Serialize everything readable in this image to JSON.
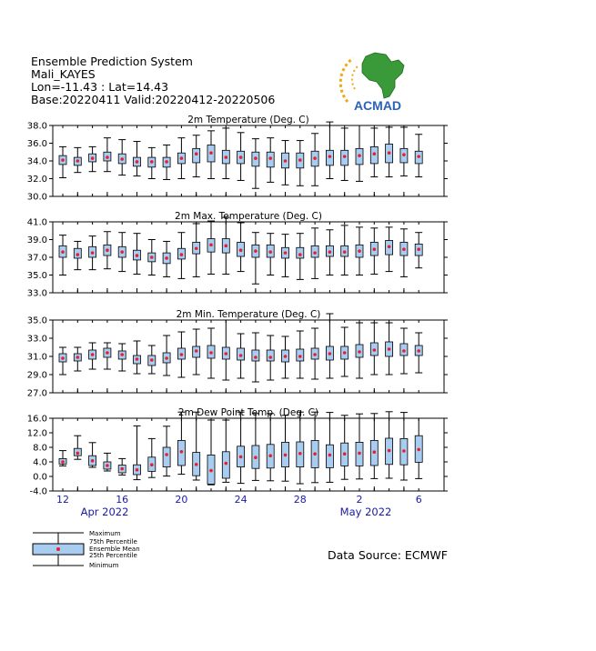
{
  "header": {
    "line1": "Ensemble Prediction System",
    "line2": "Mali_KAYES",
    "line3": "Lon=-11.43 : Lat=14.43",
    "line4": "Base:20220411 Valid:20220412-20220506"
  },
  "logo": {
    "text": "ACMAD",
    "icon": "africa-map-sun-logo"
  },
  "source": "Data Source: ECMWF",
  "legend": {
    "maximum": "Maximum",
    "p75": "75th Percentile",
    "mean": "Ensemble Mean",
    "p25": "25th Percentile",
    "minimum": "Minimum"
  },
  "colors": {
    "box": "#a9cdf0",
    "mean": "#e8202c",
    "axis_date": "#1a1aa8",
    "text": "#000000"
  },
  "chart_data": [
    {
      "type": "box",
      "title": "2m Temperature (Deg. C)",
      "ylim": [
        30,
        38
      ],
      "yticks": [
        "38.0",
        "36.0",
        "34.0",
        "32.0",
        "30.0"
      ],
      "x": [
        "12",
        "13",
        "14",
        "15",
        "16",
        "17",
        "18",
        "19",
        "20",
        "21",
        "22",
        "23",
        "24",
        "25",
        "26",
        "27",
        "28",
        "29",
        "30",
        "1",
        "2",
        "3",
        "4",
        "5",
        "6"
      ],
      "min": [
        32.1,
        32.7,
        32.8,
        32.8,
        32.4,
        32.3,
        32.0,
        31.9,
        32.0,
        32.2,
        32.0,
        32.0,
        31.8,
        30.9,
        31.6,
        31.3,
        31.2,
        31.2,
        32.0,
        31.8,
        31.7,
        32.2,
        32.2,
        32.3,
        32.2
      ],
      "p25": [
        33.6,
        33.5,
        33.9,
        34.0,
        33.7,
        33.4,
        33.3,
        33.3,
        33.7,
        33.8,
        33.9,
        33.7,
        33.7,
        33.4,
        33.3,
        33.2,
        33.2,
        33.4,
        33.5,
        33.5,
        33.6,
        33.7,
        33.8,
        33.8,
        33.7
      ],
      "mean": [
        34.1,
        34.0,
        34.3,
        34.4,
        34.2,
        33.9,
        33.9,
        33.9,
        34.3,
        34.8,
        34.9,
        34.4,
        34.4,
        34.3,
        34.3,
        34.0,
        34.1,
        34.3,
        34.5,
        34.5,
        34.6,
        34.8,
        34.9,
        34.7,
        34.5
      ],
      "p75": [
        34.6,
        34.4,
        34.8,
        35.0,
        34.8,
        34.4,
        34.4,
        34.4,
        34.9,
        35.4,
        35.8,
        35.2,
        35.1,
        35.0,
        35.0,
        34.9,
        34.9,
        35.1,
        35.2,
        35.2,
        35.4,
        35.6,
        35.9,
        35.4,
        35.1
      ],
      "max": [
        35.6,
        35.5,
        35.6,
        36.6,
        36.4,
        36.2,
        35.5,
        35.8,
        36.6,
        36.9,
        37.4,
        37.7,
        37.2,
        36.5,
        36.6,
        36.3,
        36.3,
        37.1,
        38.4,
        37.7,
        38.0,
        37.7,
        37.8,
        37.8,
        37.0
      ]
    },
    {
      "type": "box",
      "title": "2m Max. Temperature (Deg. C)",
      "ylim": [
        33,
        41
      ],
      "yticks": [
        "41.0",
        "39.0",
        "37.0",
        "35.0",
        "33.0"
      ],
      "x": [
        "12",
        "13",
        "14",
        "15",
        "16",
        "17",
        "18",
        "19",
        "20",
        "21",
        "22",
        "23",
        "24",
        "25",
        "26",
        "27",
        "28",
        "29",
        "30",
        "1",
        "2",
        "3",
        "4",
        "5",
        "6"
      ],
      "min": [
        35.0,
        35.6,
        35.6,
        35.7,
        35.4,
        35.1,
        35.0,
        34.8,
        34.6,
        34.8,
        35.1,
        35.1,
        35.4,
        34.0,
        35.0,
        34.8,
        34.5,
        34.6,
        35.0,
        35.0,
        35.0,
        35.1,
        35.4,
        34.8,
        35.8
      ],
      "p25": [
        37.0,
        36.9,
        37.0,
        37.2,
        37.0,
        36.7,
        36.5,
        36.3,
        36.8,
        37.4,
        37.6,
        37.5,
        37.1,
        37.0,
        37.0,
        36.9,
        36.9,
        37.0,
        37.1,
        37.1,
        37.0,
        37.2,
        37.3,
        37.2,
        37.2
      ],
      "mean": [
        37.6,
        37.3,
        37.5,
        37.8,
        37.6,
        37.2,
        37.0,
        36.9,
        37.3,
        38.0,
        38.4,
        38.3,
        37.8,
        37.7,
        37.6,
        37.5,
        37.3,
        37.5,
        37.6,
        37.6,
        37.7,
        37.9,
        38.2,
        37.9,
        37.9
      ],
      "p75": [
        38.3,
        38.0,
        38.2,
        38.4,
        38.2,
        37.8,
        37.5,
        37.5,
        38.0,
        38.7,
        39.1,
        39.1,
        38.7,
        38.4,
        38.4,
        38.1,
        38.1,
        38.3,
        38.3,
        38.3,
        38.4,
        38.7,
        38.9,
        38.7,
        38.5
      ],
      "max": [
        39.5,
        38.8,
        39.4,
        39.9,
        39.8,
        39.7,
        39.0,
        38.8,
        39.8,
        40.8,
        41.1,
        41.5,
        40.9,
        39.8,
        39.7,
        39.6,
        39.7,
        40.3,
        40.1,
        40.6,
        40.4,
        40.3,
        40.4,
        40.2,
        39.8
      ]
    },
    {
      "type": "box",
      "title": "2m Min. Temperature (Deg. C)",
      "ylim": [
        27,
        35
      ],
      "yticks": [
        "35.0",
        "33.0",
        "31.0",
        "29.0",
        "27.0"
      ],
      "x": [
        "12",
        "13",
        "14",
        "15",
        "16",
        "17",
        "18",
        "19",
        "20",
        "21",
        "22",
        "23",
        "24",
        "25",
        "26",
        "27",
        "28",
        "29",
        "30",
        "1",
        "2",
        "3",
        "4",
        "5",
        "6"
      ],
      "min": [
        29.0,
        29.4,
        29.6,
        29.6,
        29.4,
        29.1,
        29.1,
        28.9,
        28.7,
        29.0,
        28.6,
        28.4,
        28.6,
        28.2,
        28.4,
        28.6,
        28.6,
        28.5,
        28.6,
        28.8,
        28.6,
        29.0,
        29.0,
        29.1,
        29.2
      ],
      "p25": [
        30.4,
        30.5,
        30.7,
        30.9,
        30.7,
        30.2,
        30.0,
        30.3,
        30.7,
        30.9,
        30.8,
        30.7,
        30.6,
        30.5,
        30.5,
        30.4,
        30.5,
        30.7,
        30.6,
        30.7,
        30.9,
        31.1,
        31.0,
        31.1,
        31.1
      ],
      "mean": [
        30.8,
        30.9,
        31.2,
        31.4,
        31.2,
        30.7,
        30.6,
        30.8,
        31.2,
        31.6,
        31.4,
        31.3,
        31.1,
        30.9,
        30.9,
        31.0,
        31.0,
        31.2,
        31.3,
        31.4,
        31.5,
        31.7,
        31.8,
        31.6,
        31.6
      ],
      "p75": [
        31.3,
        31.3,
        31.7,
        31.9,
        31.6,
        31.1,
        31.1,
        31.4,
        31.9,
        32.1,
        32.2,
        32.0,
        31.9,
        31.7,
        31.7,
        31.7,
        31.8,
        31.9,
        32.1,
        32.1,
        32.3,
        32.5,
        32.6,
        32.4,
        32.2
      ],
      "max": [
        32.0,
        32.0,
        32.5,
        32.5,
        32.4,
        32.7,
        32.2,
        33.3,
        33.7,
        34.0,
        34.1,
        35.0,
        33.5,
        33.6,
        33.3,
        33.2,
        33.8,
        34.1,
        35.7,
        34.2,
        34.7,
        34.7,
        34.7,
        34.1,
        33.6
      ]
    },
    {
      "type": "box",
      "title": "2m Dew Point Temp. (Deg. C)",
      "ylim": [
        -4,
        16
      ],
      "yticks": [
        "16.0",
        "12.0",
        "8.0",
        "4.0",
        "0.0",
        "-4.0"
      ],
      "x": [
        "12",
        "13",
        "14",
        "15",
        "16",
        "17",
        "18",
        "19",
        "20",
        "21",
        "22",
        "23",
        "24",
        "25",
        "26",
        "27",
        "28",
        "29",
        "30",
        "1",
        "2",
        "3",
        "4",
        "5",
        "6"
      ],
      "min": [
        2.9,
        4.7,
        2.5,
        1.5,
        0.4,
        -0.9,
        -0.3,
        0.1,
        0.6,
        -1.0,
        -2.3,
        -1.6,
        -1.9,
        -1.1,
        -1.2,
        -1.3,
        -2.0,
        -1.7,
        -1.6,
        -0.8,
        -0.7,
        -0.6,
        -0.5,
        -1.0,
        -0.6
      ],
      "p25": [
        3.4,
        5.7,
        3.0,
        2.0,
        1.0,
        0.5,
        1.4,
        2.6,
        3.0,
        0.2,
        -2.1,
        -0.5,
        2.6,
        2.2,
        2.3,
        2.6,
        2.6,
        2.4,
        2.4,
        2.9,
        2.9,
        3.0,
        3.3,
        3.2,
        3.9
      ],
      "mean": [
        4.0,
        6.4,
        4.3,
        3.0,
        2.1,
        1.8,
        3.2,
        6.0,
        6.8,
        3.3,
        1.6,
        3.6,
        5.4,
        5.2,
        5.7,
        5.9,
        6.3,
        6.2,
        5.9,
        6.2,
        6.4,
        6.7,
        7.1,
        7.0,
        7.4
      ],
      "p75": [
        4.9,
        7.7,
        5.7,
        4.0,
        3.1,
        3.2,
        5.3,
        8.0,
        9.9,
        6.6,
        5.9,
        6.8,
        8.3,
        8.5,
        8.8,
        9.4,
        9.5,
        9.9,
        8.7,
        9.2,
        9.4,
        9.9,
        10.5,
        10.4,
        11.2
      ],
      "max": [
        7.1,
        11.2,
        9.3,
        6.4,
        4.9,
        13.9,
        10.4,
        13.8,
        17.7,
        17.7,
        15.5,
        15.5,
        17.7,
        17.3,
        17.3,
        16.8,
        17.7,
        17.7,
        17.6,
        16.8,
        17.2,
        17.3,
        17.8,
        17.6,
        16.0
      ]
    }
  ],
  "x_axis": {
    "tick_labels": [
      "12",
      "16",
      "20",
      "24",
      "28",
      "2",
      "6"
    ],
    "month_labels": [
      "Apr 2022",
      "May 2022"
    ]
  }
}
